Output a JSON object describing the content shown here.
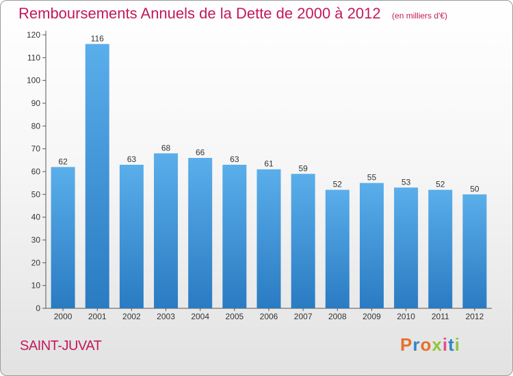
{
  "chart_data": {
    "type": "bar",
    "title": "Remboursements Annuels de la Dette de 2000 à 2012",
    "subtitle": "(en milliers d'€)",
    "categories": [
      "2000",
      "2001",
      "2002",
      "2003",
      "2004",
      "2005",
      "2006",
      "2007",
      "2008",
      "2009",
      "2010",
      "2011",
      "2012"
    ],
    "values": [
      62,
      116,
      63,
      68,
      66,
      63,
      61,
      59,
      52,
      55,
      53,
      52,
      50
    ],
    "ylim": [
      0,
      120
    ],
    "yticks": [
      0,
      10,
      20,
      30,
      40,
      50,
      60,
      70,
      80,
      90,
      100,
      110,
      120
    ],
    "xlabel": "",
    "ylabel": "",
    "grid": false,
    "data_labels": true,
    "bar_color": "#3d8fd6"
  },
  "footer": {
    "place": "SAINT-JUVAT",
    "brand": "Proxiti",
    "brand_colors": [
      "#e8702a",
      "#2e86c8",
      "#e8702a",
      "#8dc63f",
      "#e84a8a",
      "#2e86c8",
      "#8dc63f"
    ]
  }
}
